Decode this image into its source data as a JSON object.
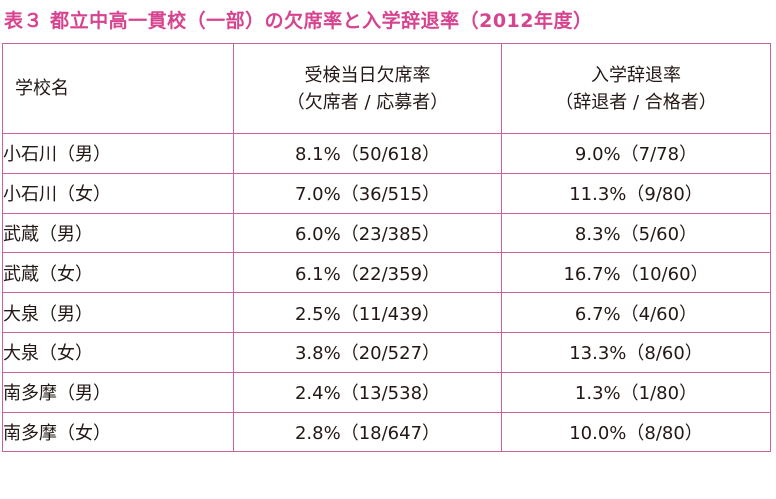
{
  "caption": "表３ 都立中高一貫校（一部）の欠席率と入学辞退率（2012年度）",
  "header": {
    "school": "学校名",
    "absence": {
      "line1": "受検当日欠席率",
      "line2": "（欠席者 / 応募者）"
    },
    "decline": {
      "line1": "入学辞退率",
      "line2": "（辞退者 / 合格者）"
    }
  },
  "rows": [
    {
      "school": "小石川（男）",
      "absence": "8.1%（50/618）",
      "decline": "9.0%（7/78）"
    },
    {
      "school": "小石川（女）",
      "absence": "7.0%（36/515）",
      "decline": "11.3%（9/80）"
    },
    {
      "school": "武蔵（男）",
      "absence": "6.0%（23/385）",
      "decline": "8.3%（5/60）"
    },
    {
      "school": "武蔵（女）",
      "absence": "6.1%（22/359）",
      "decline": "16.7%（10/60）"
    },
    {
      "school": "大泉（男）",
      "absence": "2.5%（11/439）",
      "decline": "6.7%（4/60）"
    },
    {
      "school": "大泉（女）",
      "absence": "3.8%（20/527）",
      "decline": "13.3%（8/60）"
    },
    {
      "school": "南多摩（男）",
      "absence": "2.4%（13/538）",
      "decline": "1.3%（1/80）"
    },
    {
      "school": "南多摩（女）",
      "absence": "2.8%（18/647）",
      "decline": "10.0%（8/80）"
    }
  ],
  "colors": {
    "caption": "#d6438f",
    "border": "#c9629e",
    "text": "#231815"
  }
}
